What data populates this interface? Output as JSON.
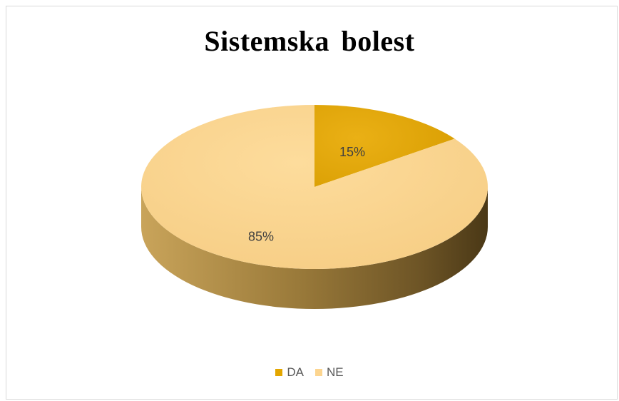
{
  "chart_data": {
    "type": "pie",
    "title": "Sistemska bolest",
    "categories": [
      "DA",
      "NE"
    ],
    "values": [
      15,
      85
    ],
    "data_labels": [
      "15%",
      "85%"
    ],
    "colors": {
      "DA": "#e3a600",
      "NE": "#fcd590"
    },
    "legend_position": "bottom",
    "style": "3d"
  }
}
